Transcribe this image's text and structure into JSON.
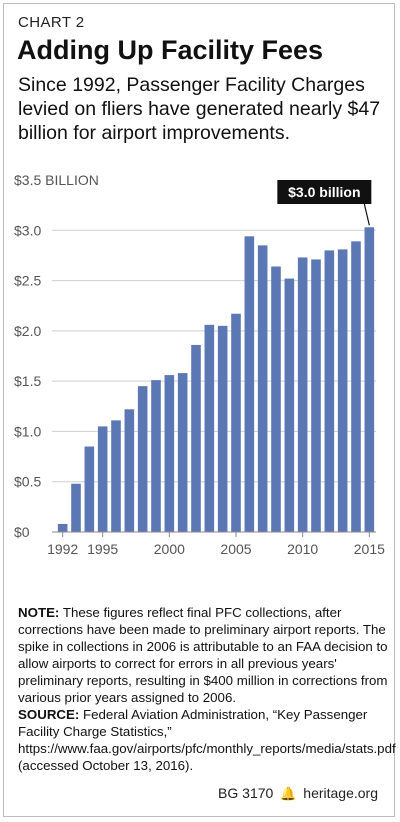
{
  "header": {
    "chart_label": "CHART 2",
    "title": "Adding Up Facility Fees",
    "subtitle": "Since 1992, Passenger Facility Charges levied on fliers have generated nearly $47 billion for airport improvements."
  },
  "colors": {
    "bar": "#5b78b4",
    "grid": "#cfcfcf",
    "callout_bg": "#111111",
    "callout_text": "#ffffff"
  },
  "chart_data": {
    "type": "bar",
    "unit_label": "$3.5 BILLION",
    "y_ticks": [
      "$0",
      "$0.5",
      "$1.0",
      "$1.5",
      "$2.0",
      "$2.5",
      "$3.0"
    ],
    "x_ticks": [
      "1992",
      "1995",
      "2000",
      "2005",
      "2010",
      "2015"
    ],
    "ylim": [
      0,
      3.5
    ],
    "grid": true,
    "years": [
      1992,
      1993,
      1994,
      1995,
      1996,
      1997,
      1998,
      1999,
      2000,
      2001,
      2002,
      2003,
      2004,
      2005,
      2006,
      2007,
      2008,
      2009,
      2010,
      2011,
      2012,
      2013,
      2014,
      2015
    ],
    "values": [
      0.08,
      0.48,
      0.85,
      1.05,
      1.11,
      1.22,
      1.45,
      1.51,
      1.56,
      1.58,
      1.86,
      2.06,
      2.05,
      2.17,
      2.94,
      2.85,
      2.64,
      2.52,
      2.73,
      2.71,
      2.8,
      2.81,
      2.89,
      3.03
    ],
    "annotation": {
      "text": "$3.0 billion",
      "year": 2015
    }
  },
  "notes": {
    "note_label": "NOTE:",
    "note_text": " These figures reflect final PFC collections, after corrections have been made to preliminary airport reports. The spike in collections in 2006 is attributable to an FAA decision to allow airports to correct for errors in all previous years' preliminary reports, resulting in $400 million in corrections from various prior years assigned to 2006.",
    "source_label": "SOURCE:",
    "source_text": " Federal Aviation Administration, “Key Passenger Facility Charge Statistics,” https://www.faa.gov/airports/pfc/monthly_reports/media/stats.pdf (accessed October 13, 2016)."
  },
  "footer": {
    "code": "BG 3170",
    "site": "heritage.org"
  }
}
